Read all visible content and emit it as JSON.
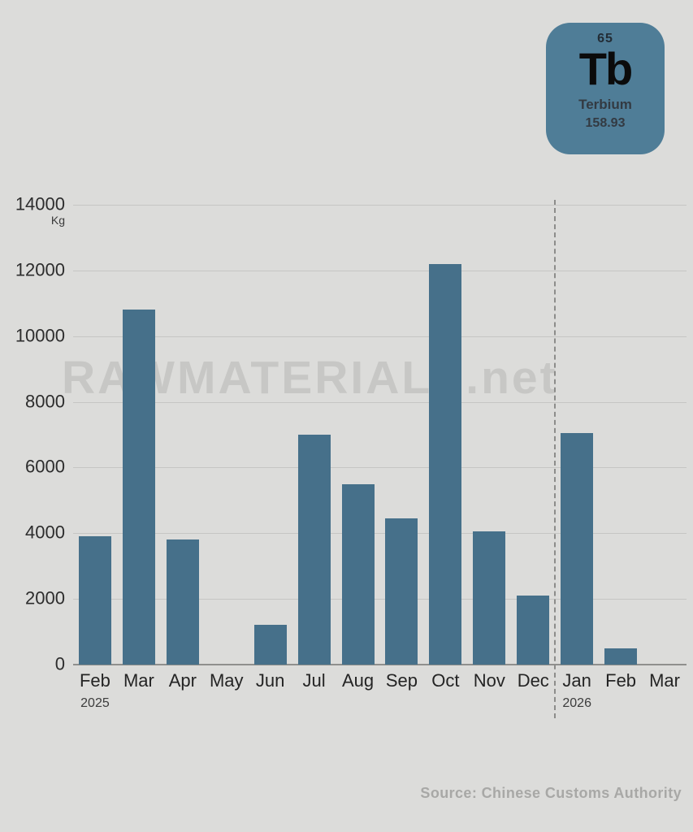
{
  "element_card": {
    "atomic_number": "65",
    "symbol": "Tb",
    "name": "Terbium",
    "atomic_mass": "158.93",
    "bg_color": "#4f7d97"
  },
  "watermark": "RAWMATERIALS.net",
  "source": "Source: Chinese Customs Authority",
  "chart_data": {
    "type": "bar",
    "title": "",
    "xlabel": "",
    "ylabel": "Kg",
    "unit": "Kg",
    "categories": [
      "Feb",
      "Mar",
      "Apr",
      "May",
      "Jun",
      "Jul",
      "Aug",
      "Sep",
      "Oct",
      "Nov",
      "Dec",
      "Jan",
      "Feb",
      "Mar"
    ],
    "values": [
      3900,
      10800,
      3800,
      0,
      1200,
      7000,
      5500,
      4450,
      12200,
      4050,
      2100,
      7050,
      500,
      null
    ],
    "year_labels": [
      {
        "index": 0,
        "label": "2025"
      },
      {
        "index": 11,
        "label": "2026"
      }
    ],
    "divider_after_index": 10,
    "y_ticks": [
      0,
      2000,
      4000,
      6000,
      8000,
      10000,
      12000,
      14000
    ],
    "ylim": [
      0,
      14000
    ],
    "grid": true,
    "legend": false,
    "bar_color": "#46708a",
    "background_color": "#dcdcda"
  }
}
